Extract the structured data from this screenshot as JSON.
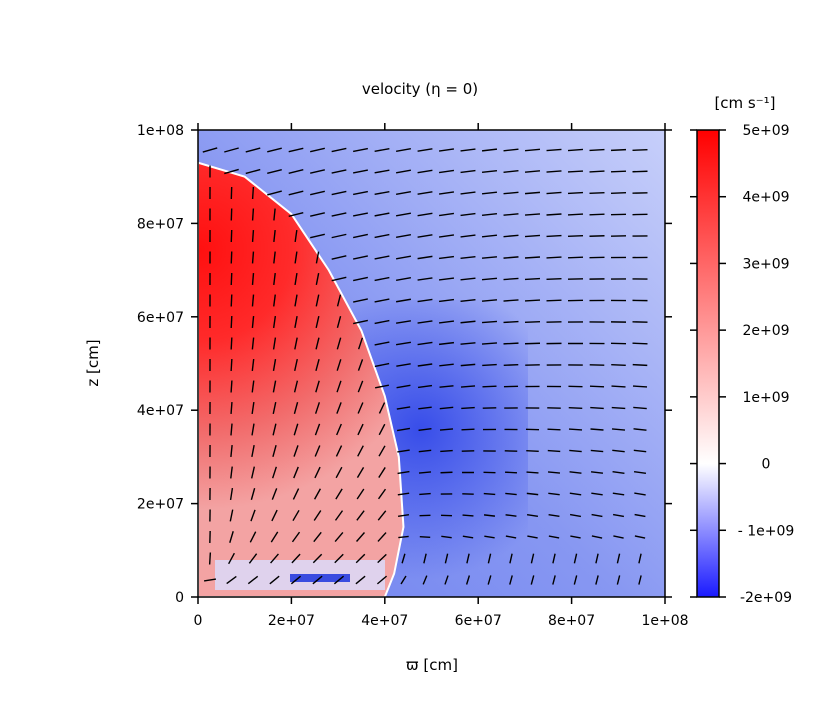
{
  "chart_data": {
    "type": "heatmap",
    "title": "velocity (η = 0)",
    "xlabel": "ϖ [cm]",
    "ylabel": "z [cm]",
    "xlim": [
      0,
      100000000
    ],
    "ylim": [
      0,
      100000000
    ],
    "x_ticks": [
      {
        "value": 0,
        "label": "0"
      },
      {
        "value": 20000000,
        "label": "2e+07"
      },
      {
        "value": 40000000,
        "label": "4e+07"
      },
      {
        "value": 60000000,
        "label": "6e+07"
      },
      {
        "value": 80000000,
        "label": "8e+07"
      },
      {
        "value": 100000000,
        "label": "1e+08"
      }
    ],
    "y_ticks": [
      {
        "value": 0,
        "label": "0"
      },
      {
        "value": 20000000,
        "label": "2e+07"
      },
      {
        "value": 40000000,
        "label": "4e+07"
      },
      {
        "value": 60000000,
        "label": "6e+07"
      },
      {
        "value": 80000000,
        "label": "8e+07"
      },
      {
        "value": 100000000,
        "label": "1e+08"
      }
    ],
    "colorbar": {
      "label": "[cm s⁻¹]",
      "range": [
        -2000000000,
        5000000000
      ],
      "colors": {
        "min": "#1a1aff",
        "zero": "#ffffff",
        "max": "#ff0000"
      },
      "ticks": [
        {
          "value": 5000000000,
          "label": "5e+09"
        },
        {
          "value": 4000000000,
          "label": "4e+09"
        },
        {
          "value": 3000000000,
          "label": "3e+09"
        },
        {
          "value": 2000000000,
          "label": "2e+09"
        },
        {
          "value": 1000000000,
          "label": "1e+09"
        },
        {
          "value": 0,
          "label": "0"
        },
        {
          "value": -1000000000,
          "label": "- 1e+09"
        },
        {
          "value": -2000000000,
          "label": "-2e+09"
        }
      ]
    },
    "outflow_boundary": [
      [
        0,
        93000000
      ],
      [
        10000000,
        90000000
      ],
      [
        20000000,
        82000000
      ],
      [
        28000000,
        70000000
      ],
      [
        35000000,
        57000000
      ],
      [
        40000000,
        43000000
      ],
      [
        43000000,
        30000000
      ],
      [
        44000000,
        15000000
      ],
      [
        42000000,
        5000000
      ],
      [
        40000000,
        0
      ]
    ],
    "grid": false,
    "vector_field": true
  }
}
